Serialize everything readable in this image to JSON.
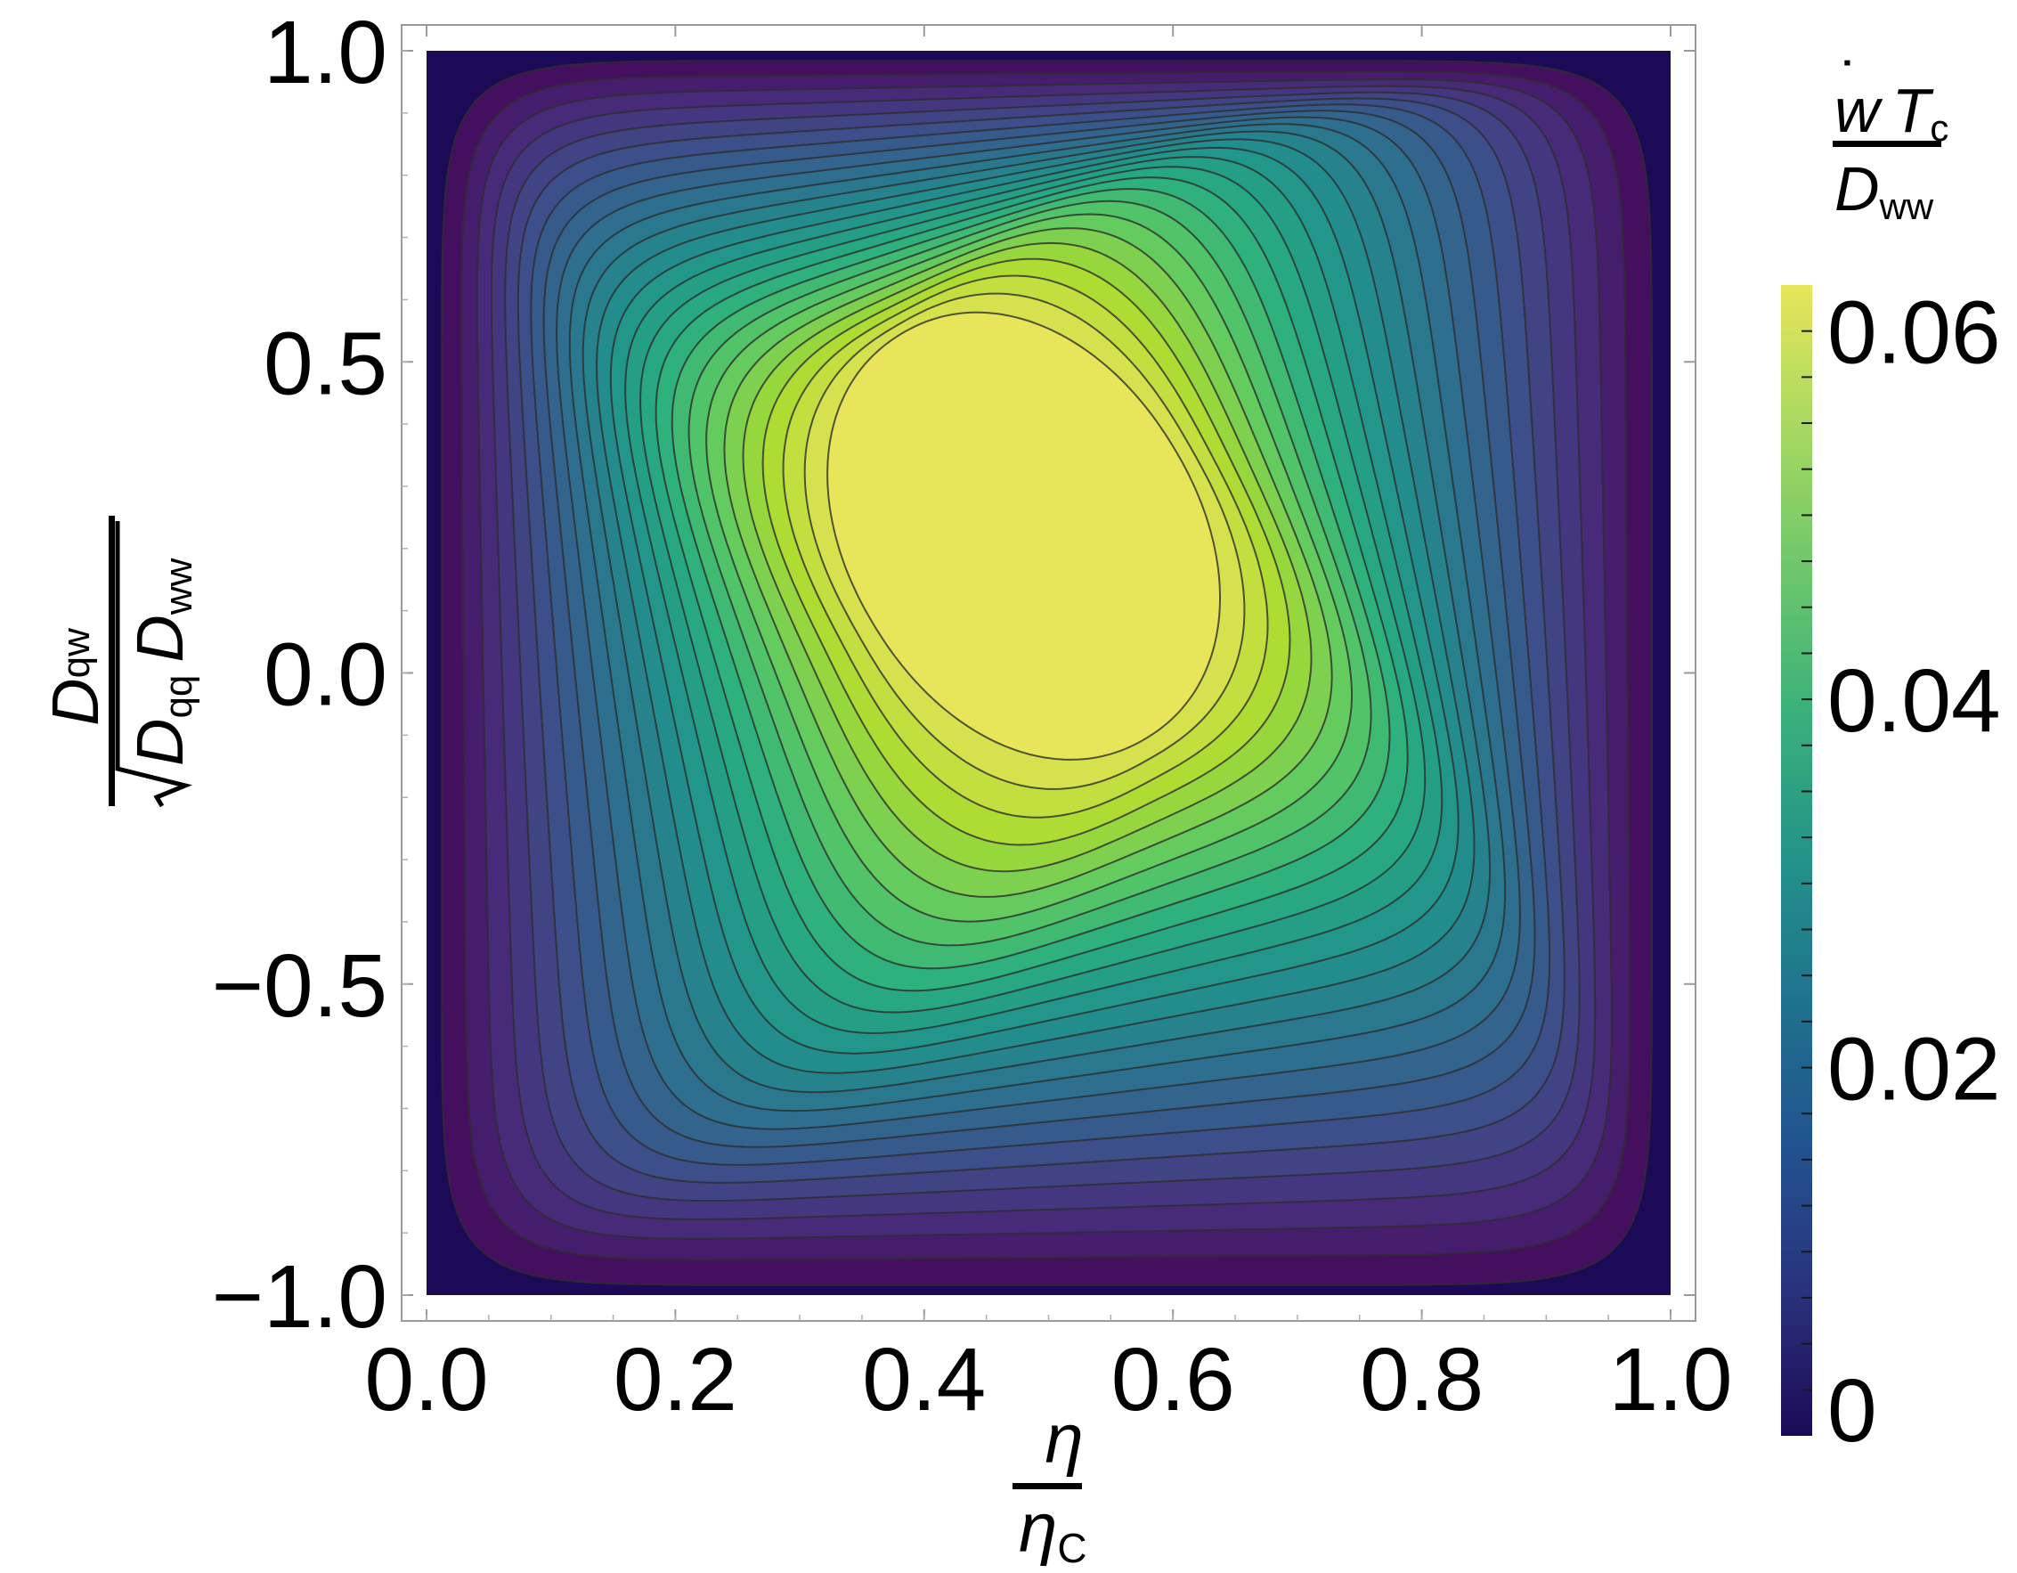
{
  "chart_data": {
    "type": "heatmap",
    "subtype": "contour",
    "title": "",
    "x_axis": {
      "label_numerator": "η",
      "label_denominator_symbol": "η",
      "label_denominator_sub": "C",
      "range": [
        0.0,
        1.0
      ],
      "ticks": [
        "0.0",
        "0.2",
        "0.4",
        "0.6",
        "0.8",
        "1.0"
      ],
      "tick_values": [
        0.0,
        0.2,
        0.4,
        0.6,
        0.8,
        1.0
      ]
    },
    "y_axis": {
      "label_numerator_symbol": "D",
      "label_numerator_sub": "qw",
      "label_den_symbol_1": "D",
      "label_den_sub_1": "qq",
      "label_den_symbol_2": "D",
      "label_den_sub_2": "ww",
      "range": [
        -1.0,
        1.0
      ],
      "ticks": [
        "1.0",
        "0.5",
        "0.0",
        "−0.5",
        "−1.0"
      ],
      "tick_values": [
        1.0,
        0.5,
        0.0,
        -0.5,
        -1.0
      ]
    },
    "colorbar": {
      "label_num_symbol_1": "w",
      "label_num_dot": "˙",
      "label_num_symbol_2": "T",
      "label_num_sub": "c",
      "label_den_symbol": "D",
      "label_den_sub": "ww",
      "range": [
        0,
        0.0625
      ],
      "ticks": [
        "0",
        "0.02",
        "0.04",
        "0.06"
      ],
      "tick_values": [
        0,
        0.02,
        0.04,
        0.06
      ],
      "levels": 25,
      "colormap": [
        "#440154",
        "#472c7a",
        "#3b528b",
        "#2c728e",
        "#21918c",
        "#28ae80",
        "#5ec962",
        "#addc30",
        "#e8e55a"
      ]
    },
    "peak": {
      "x": 0.48,
      "y": 0.22,
      "value": 0.0625
    },
    "grid": false,
    "legend": "none"
  }
}
